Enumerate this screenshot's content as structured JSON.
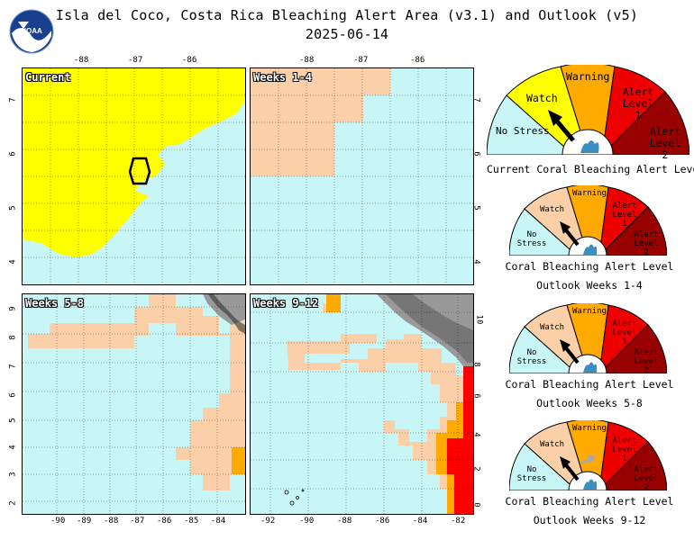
{
  "header": {
    "title_line1": "Isla del Coco, Costa Rica Bleaching Alert Area (v3.1) and Outlook (v5)",
    "date": "2025-06-14",
    "logo_text": "NOAA"
  },
  "panels": [
    {
      "id": "current",
      "label": "Current",
      "top_ticks": [
        "-88",
        "-87",
        "-86"
      ],
      "left_ticks": [
        "7",
        "6",
        "5",
        "4"
      ]
    },
    {
      "id": "w1_4",
      "label": "Weeks 1-4",
      "top_ticks": [
        "-88",
        "-87",
        "-86"
      ],
      "right_ticks": [
        "7",
        "6",
        "5",
        "4"
      ]
    },
    {
      "id": "w5_8",
      "label": "Weeks 5-8",
      "left_ticks": [
        "9",
        "8",
        "7",
        "6",
        "5",
        "4",
        "3",
        "2"
      ],
      "bottom_ticks": [
        "-90",
        "-89",
        "-88",
        "-87",
        "-86",
        "-85",
        "-84"
      ]
    },
    {
      "id": "w9_12",
      "label": "Weeks 9-12",
      "right_ticks": [
        "10",
        "8",
        "6",
        "4",
        "2",
        "0"
      ],
      "bottom_ticks": [
        "-92",
        "-90",
        "-88",
        "-86",
        "-84",
        "-82"
      ]
    }
  ],
  "gauges": [
    {
      "caption_line1": "Current Coral Bleaching Alert Level",
      "caption_line2": "",
      "pointer": "watch"
    },
    {
      "caption_line1": "Coral Bleaching Alert Level",
      "caption_line2": "Outlook Weeks 1-4",
      "pointer": "watch"
    },
    {
      "caption_line1": "Coral Bleaching Alert Level",
      "caption_line2": "Outlook Weeks 5-8",
      "pointer": "watch"
    },
    {
      "caption_line1": "Coral Bleaching Alert Level",
      "caption_line2": "Outlook Weeks 9-12",
      "pointer": "watch"
    }
  ],
  "gauge_levels": {
    "no_stress": "No Stress",
    "watch": "Watch",
    "warning": "Warning",
    "alert1": "Alert Level 1",
    "alert2": "Alert Level 2"
  },
  "colors": {
    "no_stress": "#c8f6f6",
    "watch": "#ffff00",
    "watch_outlook": "#fbd0a8",
    "warning": "#ffaa00",
    "alert1": "#ee0000",
    "alert2": "#990000",
    "land": "#999999"
  }
}
